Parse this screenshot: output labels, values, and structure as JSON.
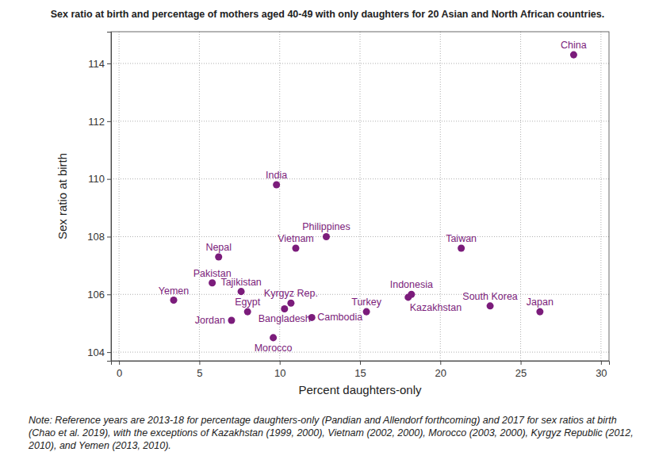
{
  "chart_data": {
    "type": "scatter",
    "title": "Sex ratio at birth and percentage of mothers aged 40-49 with only daughters for 20 Asian and North African countries.",
    "x_label": "Percent daughters-only",
    "y_label": "Sex ratio at birth",
    "note": "Note: Reference years are 2013-18 for percentage daughters-only (Pandian and Allendorf forthcoming) and 2017 for sex ratios at birth (Chao et al. 2019), with the exceptions of Kazakhstan (1999, 2000), Vietnam (2002, 2000), Morocco (2003, 2000), Kyrgyz Republic (2012, 2010), and Yemen (2013, 2010).",
    "labels": [
      "Yemen",
      "Pakistan",
      "Nepal",
      "Jordan",
      "Tajikistan",
      "Egypt",
      "Morocco",
      "India",
      "Bangladesh",
      "Kyrgyz Rep.",
      "Vietnam",
      "Cambodia",
      "Philippines",
      "Turkey",
      "Kazakhstan",
      "Indonesia",
      "Taiwan",
      "South Korea",
      "Japan",
      "China"
    ],
    "x": [
      3.4,
      5.8,
      6.2,
      7.0,
      7.6,
      8.0,
      9.6,
      9.8,
      10.3,
      10.7,
      11.0,
      12.0,
      12.9,
      15.4,
      18.0,
      18.2,
      21.3,
      23.1,
      26.2,
      28.3
    ],
    "values": [
      105.8,
      106.4,
      107.3,
      105.1,
      106.1,
      105.4,
      104.5,
      109.8,
      105.5,
      105.7,
      107.6,
      105.2,
      108.0,
      105.4,
      105.9,
      106.0,
      107.6,
      105.6,
      105.4,
      114.3
    ],
    "color": "#7b1c7b",
    "marker": "circle",
    "xlim": [
      -0.5,
      30.5
    ],
    "xticks": [
      0,
      5,
      10,
      15,
      20,
      25,
      30
    ],
    "ylim": [
      103.7,
      115.1
    ],
    "yticks": [
      104,
      106,
      108,
      110,
      112,
      114
    ],
    "grid": true
  }
}
